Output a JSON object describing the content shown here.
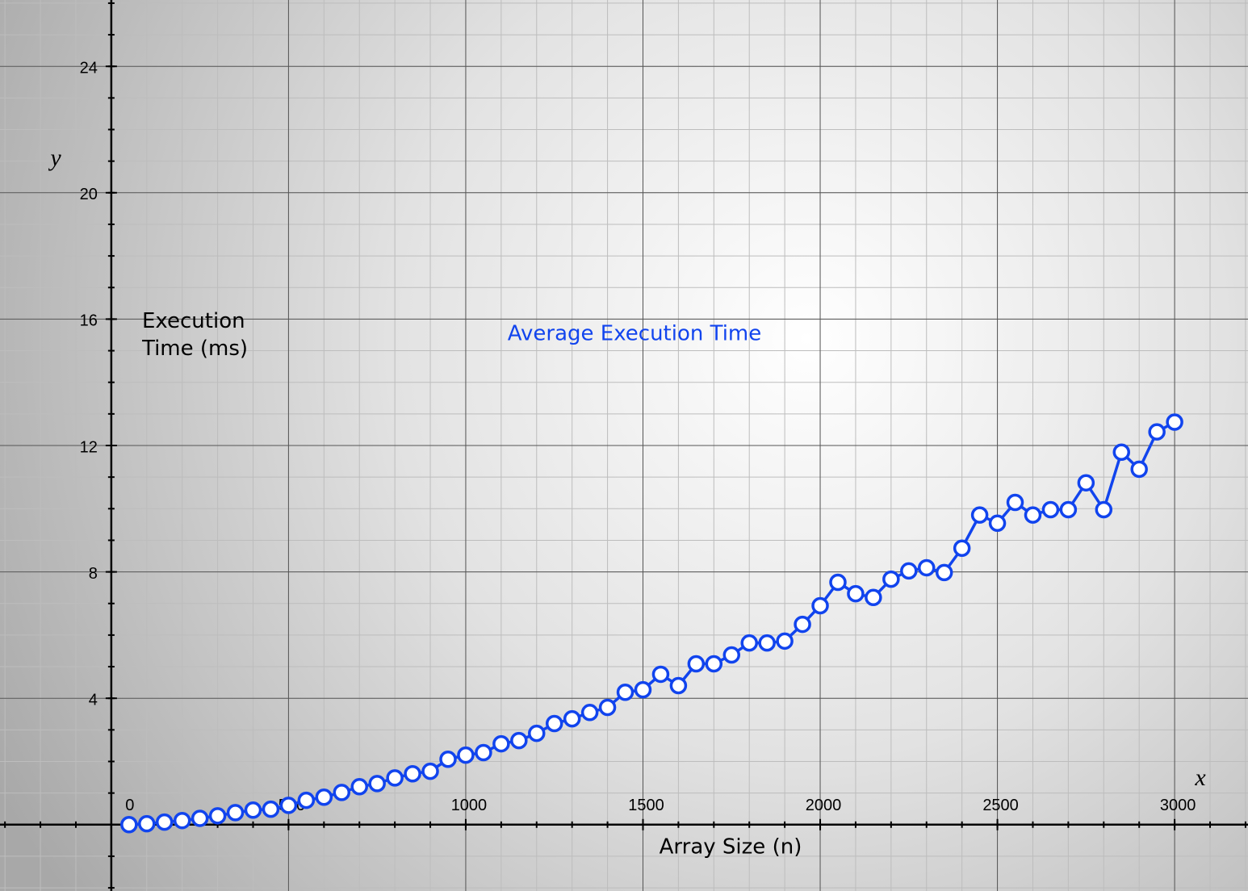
{
  "chart_data": {
    "type": "line",
    "title": "Average Execution Time",
    "xlabel": "Array Size (n)",
    "ylabel": "Execution Time (ms)",
    "x_axis_symbol": "x",
    "y_axis_symbol": "y",
    "x": [
      50,
      100,
      150,
      200,
      250,
      300,
      350,
      400,
      450,
      500,
      550,
      600,
      650,
      700,
      750,
      800,
      850,
      900,
      950,
      1000,
      1050,
      1100,
      1150,
      1200,
      1250,
      1300,
      1350,
      1400,
      1450,
      1500,
      1550,
      1600,
      1650,
      1700,
      1750,
      1800,
      1850,
      1900,
      1950,
      2000,
      2050,
      2100,
      2150,
      2200,
      2250,
      2300,
      2350,
      2400,
      2450,
      2500,
      2550,
      2600,
      2650,
      2700,
      2750,
      2800,
      2850,
      2900,
      2950,
      3000
    ],
    "series": [
      {
        "name": "Average Execution Time",
        "color": "#1144ee",
        "values": [
          0.0,
          0.03,
          0.08,
          0.13,
          0.2,
          0.28,
          0.38,
          0.46,
          0.49,
          0.61,
          0.77,
          0.87,
          1.02,
          1.2,
          1.3,
          1.48,
          1.61,
          1.69,
          2.07,
          2.2,
          2.28,
          2.56,
          2.66,
          2.89,
          3.2,
          3.35,
          3.55,
          3.71,
          4.19,
          4.27,
          4.76,
          4.4,
          5.09,
          5.09,
          5.37,
          5.75,
          5.75,
          5.81,
          6.34,
          6.93,
          7.67,
          7.31,
          7.19,
          7.77,
          8.03,
          8.13,
          7.98,
          8.75,
          9.8,
          9.54,
          10.2,
          9.8,
          9.97,
          9.97,
          10.82,
          9.97,
          11.79,
          11.25,
          12.43,
          12.74
        ]
      }
    ],
    "xlim": [
      -314,
      3207
    ],
    "ylim": [
      -2.1,
      26.1
    ],
    "xticks": [
      0,
      500,
      1000,
      1500,
      2000,
      2500,
      3000
    ],
    "yticks": [
      4,
      8,
      12,
      16,
      20,
      24
    ],
    "grid": true
  }
}
